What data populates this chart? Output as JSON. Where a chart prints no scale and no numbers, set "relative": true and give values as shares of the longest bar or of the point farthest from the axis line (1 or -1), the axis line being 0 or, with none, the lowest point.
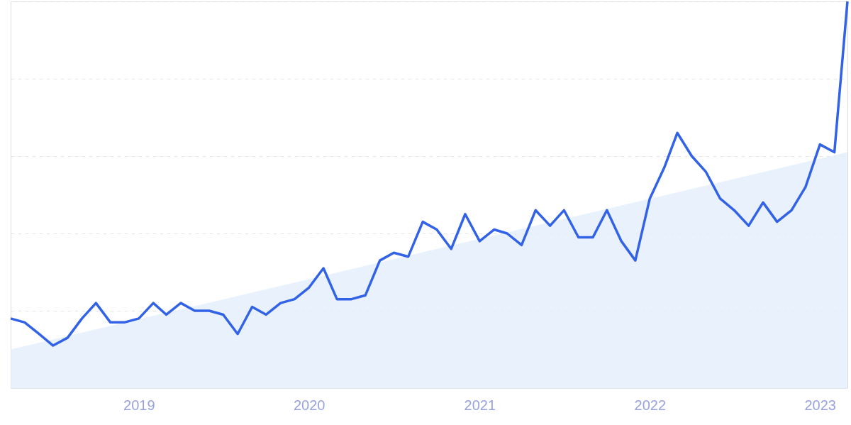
{
  "chart_data": {
    "type": "line",
    "relative": true,
    "grid": "y",
    "marker": "none",
    "line_style": "solid",
    "xlim": [
      "2018-04",
      "2023-03"
    ],
    "xticks": [
      "2019",
      "2020",
      "2021",
      "2022",
      "2023"
    ],
    "x": [
      "2018-04",
      "2018-05",
      "2018-06",
      "2018-07",
      "2018-08",
      "2018-09",
      "2018-10",
      "2018-11",
      "2018-12",
      "2019-01",
      "2019-02",
      "2019-03",
      "2019-04",
      "2019-05",
      "2019-06",
      "2019-07",
      "2019-08",
      "2019-09",
      "2019-10",
      "2019-11",
      "2019-12",
      "2020-01",
      "2020-02",
      "2020-03",
      "2020-04",
      "2020-05",
      "2020-06",
      "2020-07",
      "2020-08",
      "2020-09",
      "2020-10",
      "2020-11",
      "2020-12",
      "2021-01",
      "2021-02",
      "2021-03",
      "2021-04",
      "2021-05",
      "2021-06",
      "2021-07",
      "2021-08",
      "2021-09",
      "2021-10",
      "2021-11",
      "2021-12",
      "2022-01",
      "2022-02",
      "2022-03",
      "2022-04",
      "2022-05",
      "2022-06",
      "2022-07",
      "2022-08",
      "2022-09",
      "2022-10",
      "2022-11",
      "2022-12",
      "2023-01",
      "2023-02",
      "2023-03"
    ],
    "series": [
      {
        "type": "area",
        "color": "#e2edfb",
        "x": [
          "2018-04",
          "2023-03"
        ],
        "values": [
          0.1,
          0.61
        ]
      },
      {
        "color": "#3262e6",
        "values": [
          0.18,
          0.17,
          0.14,
          0.11,
          0.13,
          0.18,
          0.22,
          0.17,
          0.17,
          0.18,
          0.22,
          0.19,
          0.22,
          0.2,
          0.2,
          0.19,
          0.14,
          0.21,
          0.19,
          0.22,
          0.23,
          0.26,
          0.31,
          0.23,
          0.23,
          0.24,
          0.33,
          0.35,
          0.34,
          0.43,
          0.41,
          0.36,
          0.45,
          0.38,
          0.41,
          0.4,
          0.37,
          0.46,
          0.42,
          0.46,
          0.39,
          0.39,
          0.46,
          0.38,
          0.33,
          0.49,
          0.57,
          0.66,
          0.6,
          0.56,
          0.49,
          0.46,
          0.42,
          0.48,
          0.43,
          0.46,
          0.52,
          0.63,
          0.61,
          1.0
        ]
      }
    ]
  }
}
